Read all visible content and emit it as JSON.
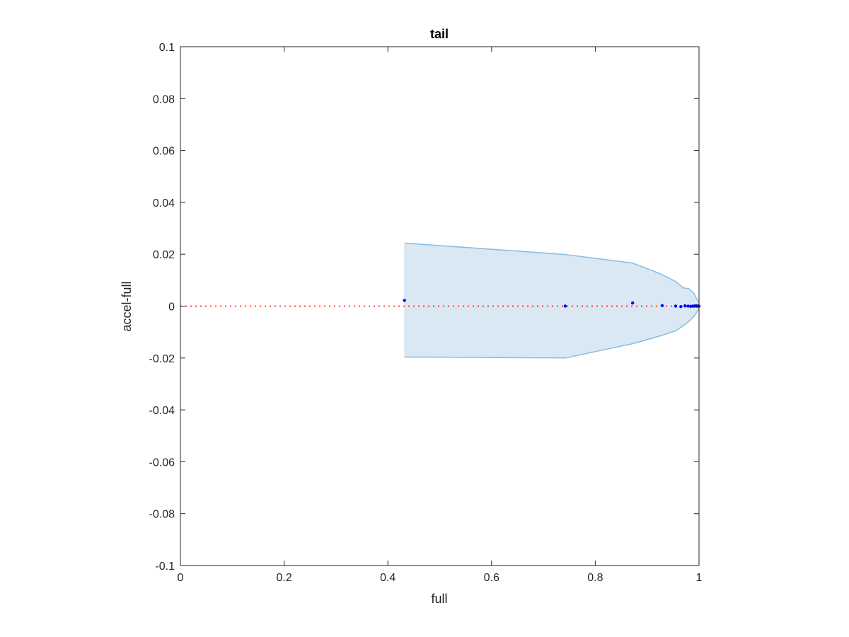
{
  "chart_data": {
    "type": "scatter",
    "title": "tail",
    "xlabel": "full",
    "ylabel": "accel-full",
    "xlim": [
      0,
      1
    ],
    "ylim": [
      -0.1,
      0.1
    ],
    "x_ticks": [
      0,
      0.2,
      0.4,
      0.6,
      0.8,
      1
    ],
    "x_tick_labels": [
      "0",
      "0.2",
      "0.4",
      "0.6",
      "0.8",
      "1"
    ],
    "y_ticks": [
      -0.1,
      -0.08,
      -0.06,
      -0.04,
      -0.02,
      0,
      0.02,
      0.04,
      0.06,
      0.08,
      0.1
    ],
    "y_tick_labels": [
      "-0.1",
      "-0.08",
      "-0.06",
      "-0.04",
      "-0.02",
      "0",
      "0.02",
      "0.04",
      "0.06",
      "0.08",
      "0.1"
    ],
    "grid": false,
    "reference_line": {
      "y": 0,
      "style": "dotted",
      "color": "#ff0000"
    },
    "band": {
      "color": "#dae8f4",
      "edge_color": "#88bce0",
      "x": [
        0.432,
        0.742,
        0.872,
        0.925,
        0.955,
        0.97,
        0.98,
        0.99,
        0.995,
        1.0
      ],
      "upper": [
        0.0243,
        0.0199,
        0.0166,
        0.0125,
        0.0095,
        0.007,
        0.0068,
        0.005,
        0.003,
        0.0015
      ],
      "lower": [
        -0.0196,
        -0.02,
        -0.0145,
        -0.0115,
        -0.0095,
        -0.0075,
        -0.006,
        -0.004,
        -0.0025,
        -0.001
      ]
    },
    "series": [
      {
        "color": "#0000ff",
        "x": [
          0.432,
          0.742,
          0.872,
          0.929,
          0.955,
          0.965,
          0.973,
          0.979,
          0.984,
          0.988,
          0.991,
          0.994,
          0.996,
          0.998,
          0.999,
          1.0
        ],
        "y": [
          0.0022,
          0.0,
          0.0012,
          0.0002,
          0.0,
          -0.0002,
          0.0001,
          0.0,
          -0.0001,
          0.0,
          0.0,
          0.0001,
          0.0,
          0.0,
          0.0,
          0.0
        ]
      }
    ]
  }
}
